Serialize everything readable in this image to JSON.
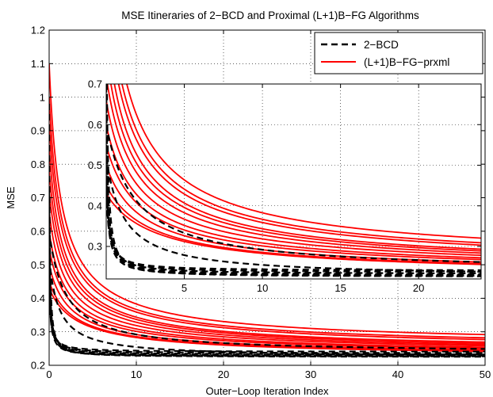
{
  "chart_data": {
    "type": "line",
    "title": "MSE Itineraries of 2−BCD and Proximal (L+1)B−FG Algorithms",
    "xlabel": "Outer−Loop Iteration Index",
    "ylabel": "MSE",
    "xlim": [
      0,
      50
    ],
    "ylim": [
      0.2,
      1.2
    ],
    "xticks": [
      0,
      10,
      20,
      30,
      40,
      50
    ],
    "yticks": [
      0.2,
      0.3,
      0.4,
      0.5,
      0.6,
      0.7,
      0.8,
      0.9,
      1,
      1.1,
      1.2
    ],
    "grid": true,
    "legend_position": "top-right",
    "legend": [
      {
        "label": "2−BCD",
        "color": "#000000",
        "style": "dashed"
      },
      {
        "label": "(L+1)B−FG−prxml",
        "color": "#ff0000",
        "style": "solid"
      }
    ],
    "curve_model": "y(x) = plateau + (start - plateau) * 1/(1 + rate*x)^power",
    "series": [
      {
        "group": "2−BCD",
        "start": 0.98,
        "plateau": 0.225,
        "rate": 12,
        "power": 1.1
      },
      {
        "group": "2−BCD",
        "start": 0.72,
        "plateau": 0.228,
        "rate": 10,
        "power": 1.1
      },
      {
        "group": "2−BCD",
        "start": 0.62,
        "plateau": 0.232,
        "rate": 9,
        "power": 1.0
      },
      {
        "group": "2−BCD",
        "start": 0.55,
        "plateau": 0.236,
        "rate": 8,
        "power": 1.0
      },
      {
        "group": "2−BCD",
        "start": 0.5,
        "plateau": 0.24,
        "rate": 7,
        "power": 1.0
      },
      {
        "group": "2−BCD",
        "start": 0.46,
        "plateau": 0.226,
        "rate": 6,
        "power": 1.0
      },
      {
        "group": "2−BCD",
        "start": 0.44,
        "plateau": 0.23,
        "rate": 5,
        "power": 1.0
      },
      {
        "group": "2−BCD",
        "start": 0.6,
        "plateau": 0.236,
        "rate": 0.55,
        "power": 1.0
      },
      {
        "group": "2−BCD",
        "start": 0.52,
        "plateau": 0.225,
        "rate": 0.9,
        "power": 1.0
      },
      {
        "group": "(L+1)B−FG−prxml",
        "start": 1.1,
        "plateau": 0.255,
        "rate": 0.9,
        "power": 0.82
      },
      {
        "group": "(L+1)B−FG−prxml",
        "start": 1.0,
        "plateau": 0.248,
        "rate": 0.85,
        "power": 0.82
      },
      {
        "group": "(L+1)B−FG−prxml",
        "start": 0.92,
        "plateau": 0.242,
        "rate": 0.8,
        "power": 0.8
      },
      {
        "group": "(L+1)B−FG−prxml",
        "start": 0.85,
        "plateau": 0.238,
        "rate": 0.8,
        "power": 0.8
      },
      {
        "group": "(L+1)B−FG−prxml",
        "start": 0.78,
        "plateau": 0.234,
        "rate": 0.75,
        "power": 0.78
      },
      {
        "group": "(L+1)B−FG−prxml",
        "start": 0.72,
        "plateau": 0.232,
        "rate": 0.7,
        "power": 0.78
      },
      {
        "group": "(L+1)B−FG−prxml",
        "start": 0.66,
        "plateau": 0.23,
        "rate": 0.7,
        "power": 0.76
      },
      {
        "group": "(L+1)B−FG−prxml",
        "start": 0.6,
        "plateau": 0.228,
        "rate": 0.65,
        "power": 0.76
      },
      {
        "group": "(L+1)B−FG−prxml",
        "start": 0.55,
        "plateau": 0.226,
        "rate": 0.6,
        "power": 0.75
      },
      {
        "group": "(L+1)B−FG−prxml",
        "start": 0.5,
        "plateau": 0.224,
        "rate": 0.55,
        "power": 0.75
      },
      {
        "group": "(L+1)B−FG−prxml",
        "start": 0.45,
        "plateau": 0.222,
        "rate": 0.45,
        "power": 0.75
      },
      {
        "group": "(L+1)B−FG−prxml",
        "start": 0.43,
        "plateau": 0.22,
        "rate": 0.4,
        "power": 0.75
      }
    ],
    "inset": {
      "xlim": [
        0,
        24
      ],
      "ylim": [
        0.22,
        0.7
      ],
      "xticks": [
        5,
        10,
        15,
        20
      ],
      "yticks": [
        0.3,
        0.4,
        0.5,
        0.6,
        0.7
      ],
      "grid": true
    }
  }
}
